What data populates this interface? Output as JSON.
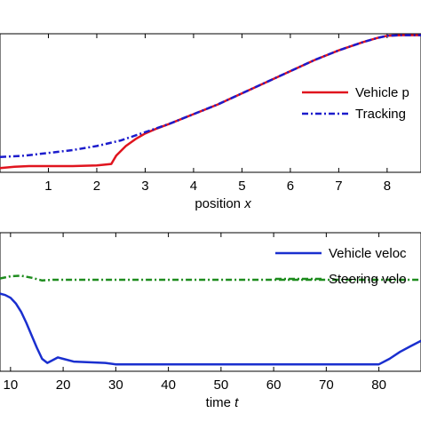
{
  "colors": {
    "vehicle_path": "#e0141e",
    "tracking_path": "#1c1ccc",
    "vehicle_velocity": "#1a2fcf",
    "steering_velocity": "#1e8c1e"
  },
  "chart_data": [
    {
      "type": "line",
      "xlabel_prefix": "position ",
      "xlabel_var": "x",
      "ylabel": "",
      "x_ticks": [
        "1",
        "2",
        "3",
        "4",
        "5",
        "6",
        "7",
        "8"
      ],
      "xlim": [
        0,
        8.7
      ],
      "ylim": [
        0,
        1
      ],
      "grid": false,
      "legend_placement": "right",
      "series": [
        {
          "name": "Vehicle p",
          "style": "solid",
          "x": [
            0,
            0.3,
            0.6,
            1.0,
            1.5,
            2.0,
            2.3,
            2.35,
            2.4,
            2.6,
            2.8,
            3.0,
            3.2,
            3.5,
            4.0,
            4.5,
            5.0,
            5.5,
            6.0,
            6.5,
            7.0,
            7.5,
            7.8,
            8.0,
            8.3,
            8.7
          ],
          "y": [
            0.03,
            0.04,
            0.045,
            0.045,
            0.045,
            0.05,
            0.06,
            0.09,
            0.12,
            0.19,
            0.24,
            0.28,
            0.31,
            0.35,
            0.42,
            0.49,
            0.57,
            0.65,
            0.73,
            0.81,
            0.88,
            0.94,
            0.97,
            0.985,
            0.99,
            0.99
          ]
        },
        {
          "name": "Tracking",
          "style": "dashdot",
          "x": [
            0,
            0.5,
            1.0,
            1.5,
            2.0,
            2.5,
            3.0,
            3.5,
            4.0,
            4.5,
            5.0,
            5.5,
            6.0,
            6.5,
            7.0,
            7.5,
            7.8,
            8.0,
            8.3,
            8.7
          ],
          "y": [
            0.11,
            0.12,
            0.14,
            0.16,
            0.19,
            0.23,
            0.29,
            0.35,
            0.42,
            0.49,
            0.57,
            0.65,
            0.73,
            0.81,
            0.88,
            0.94,
            0.97,
            0.985,
            0.99,
            0.99
          ]
        }
      ]
    },
    {
      "type": "line",
      "xlabel_prefix": "time ",
      "xlabel_var": "t",
      "ylabel": "",
      "x_ticks": [
        "10",
        "20",
        "30",
        "40",
        "50",
        "60",
        "70",
        "80"
      ],
      "xlim": [
        8,
        88
      ],
      "ylim": [
        0,
        1
      ],
      "grid": false,
      "legend_placement": "top-right",
      "series": [
        {
          "name": "Vehicle veloc",
          "style": "solid",
          "x": [
            8,
            9,
            10,
            11,
            12,
            13,
            14,
            15,
            16,
            17,
            18,
            19,
            20,
            22,
            25,
            28,
            30,
            40,
            50,
            60,
            70,
            79,
            80,
            82,
            84,
            86,
            88
          ],
          "y": [
            0.56,
            0.55,
            0.53,
            0.49,
            0.43,
            0.35,
            0.26,
            0.17,
            0.09,
            0.06,
            0.08,
            0.1,
            0.09,
            0.07,
            0.065,
            0.06,
            0.05,
            0.05,
            0.05,
            0.05,
            0.05,
            0.05,
            0.05,
            0.09,
            0.14,
            0.18,
            0.22
          ]
        },
        {
          "name": "Steering velo",
          "style": "dashdot",
          "x": [
            8,
            10,
            12,
            14,
            16,
            18,
            20,
            30,
            40,
            50,
            60,
            70,
            80,
            88
          ],
          "y": [
            0.67,
            0.685,
            0.69,
            0.675,
            0.655,
            0.66,
            0.66,
            0.66,
            0.66,
            0.66,
            0.66,
            0.66,
            0.66,
            0.66
          ]
        }
      ]
    }
  ]
}
